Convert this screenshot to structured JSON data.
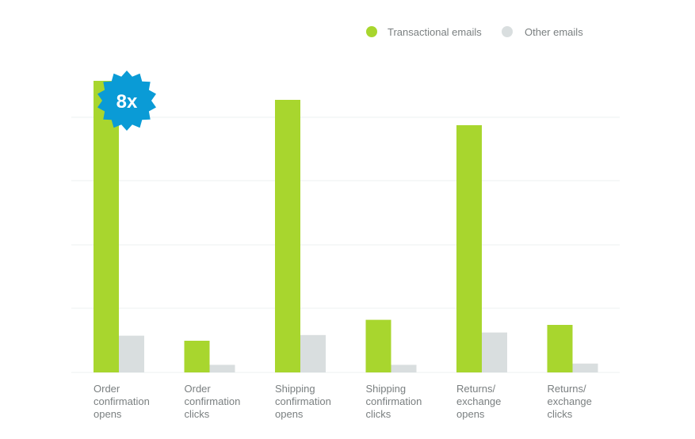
{
  "chart_data": {
    "type": "bar",
    "title": "",
    "xlabel": "",
    "ylabel": "",
    "ylim": [
      0,
      4.6
    ],
    "grid": true,
    "legend_position": "top-right",
    "categories": [
      [
        "Order",
        "confirmation",
        "opens"
      ],
      [
        "Order",
        "confirmation",
        "clicks"
      ],
      [
        "Shipping",
        "confirmation",
        "opens"
      ],
      [
        "Shipping",
        "confirmation",
        "clicks"
      ],
      [
        "Returns/",
        "exchange",
        "opens"
      ],
      [
        "Returns/",
        "exchange",
        "clicks"
      ]
    ],
    "series": [
      {
        "name": "Transactional emails",
        "color": "#a8d62e",
        "values": [
          4.6,
          0.5,
          4.3,
          0.83,
          3.9,
          0.75
        ]
      },
      {
        "name": "Other emails",
        "color": "#d9dedf",
        "values": [
          0.58,
          0.12,
          0.59,
          0.12,
          0.63,
          0.14
        ]
      }
    ],
    "annotation": {
      "text": "8x",
      "color": "#0a9bd6"
    }
  }
}
